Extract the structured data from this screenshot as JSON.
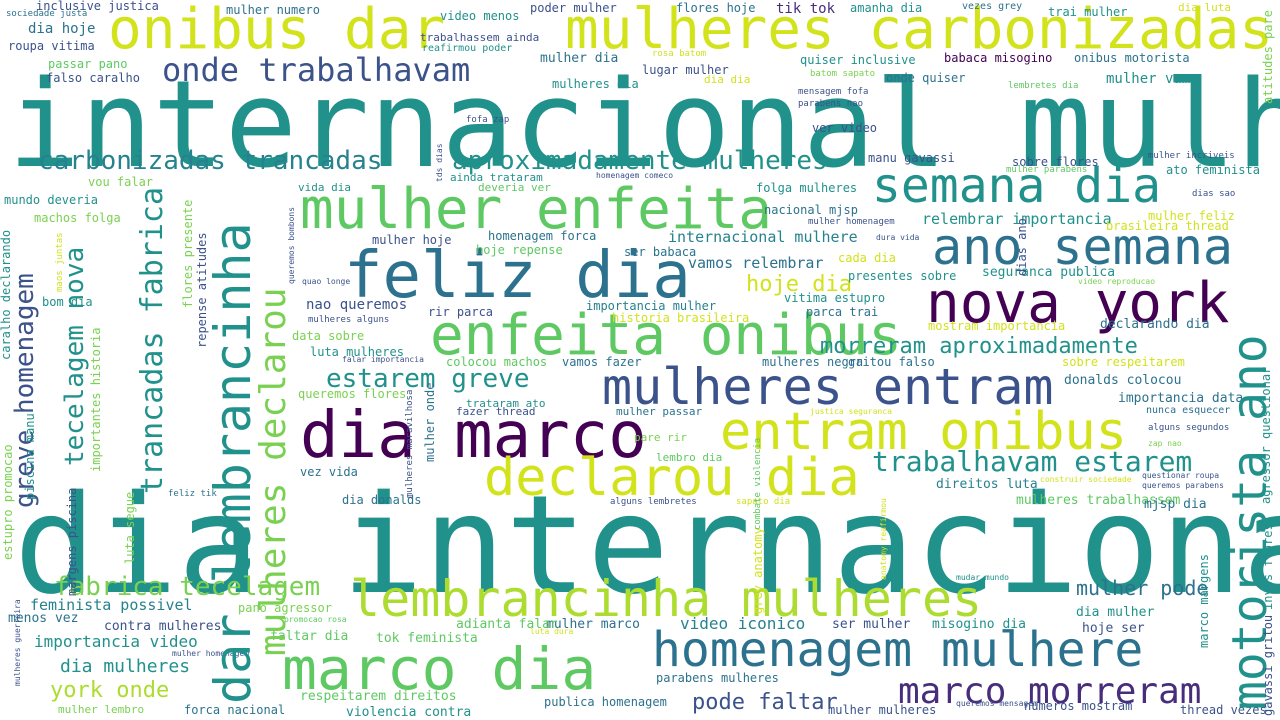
{
  "palette": {
    "teal": "#21918c",
    "navy": "#3b528b",
    "purple": "#440154",
    "green": "#5ec962",
    "lime": "#addc30",
    "yellow": "#d2e21b",
    "blue": "#2c728e",
    "lightgreen": "#7ad151",
    "darkteal": "#26828e",
    "indigo": "#472d7b"
  },
  "words": [
    "dia internacional",
    "internacional mulher",
    "mulheres carbonizadas",
    "onibus dar",
    "onde trabalhavam",
    "motorista ano",
    "semana dia",
    "ano semana",
    "mulher enfeita",
    "dar lembrancinha",
    "feliz dia",
    "nova york",
    "enfeita onibus",
    "mulheres declarou",
    "mulheres entram",
    "dia marco",
    "entram onibus",
    "declarou dia",
    "marco dia",
    "lembrancinha mulheres",
    "homenagem mulhere",
    "marco morreram",
    "carbonizadas trancadas",
    "aproximadamente mulheres",
    "trancadas fabrica",
    "tecelagem nova",
    "greve homenagem",
    "fabrica tecelagem",
    "estarem greve",
    "trabalhavam estarem",
    "morreram aproximadamente",
    "york onde",
    "pode faltar",
    "hoje dia",
    "mulher pode",
    "dia mulheres",
    "importancia video",
    "feminista possivel",
    "video iconico",
    "homenagem forca",
    "internacional mulhere",
    "vamos relembrar",
    "relembrar importancia",
    "seguranca publica",
    "declarando dia",
    "importancia data",
    "donalds colocou",
    "mulheres trabalhassem",
    "direitos luta",
    "mjsp dia",
    "dia mulher",
    "hoje ser",
    "misogino dia",
    "ser mulher",
    "mulher marco",
    "adianta falar",
    "tok feminista",
    "faltar dia",
    "contra mulheres",
    "menos vez",
    "pano agressor",
    "respeitarem direitos",
    "violencia contra",
    "publica homenagem",
    "parabens mulheres",
    "mulher mulheres",
    "numeros mostram",
    "thread vezes",
    "forca nacional",
    "mulher lembro",
    "lembro dia",
    "pare rir",
    "mulher passar",
    "fazer thread",
    "trataram ato",
    "vez vida",
    "dia donalds",
    "nunca esquecer",
    "alguns segundos",
    "agressor questionar",
    "inves flores",
    "gavassi gritou",
    "marco margens",
    "grey anatomy",
    "combate violencia",
    "mulheres maravilhosa",
    "mulher onde",
    "colocou machos",
    "vamos fazer",
    "mulheres negra",
    "gritou falso",
    "sobre respeitarem",
    "mostram importancia",
    "historia brasileira",
    "parca trai",
    "vitima estupro",
    "importancia mulher",
    "rir parca",
    "nao queremos",
    "mulheres alguns",
    "data sobre",
    "luta mulheres",
    "queremos flores",
    "presentes sobre",
    "cada dia",
    "ser babaca",
    "hoje repense",
    "mulher hoje",
    "nacional mjsp",
    "mulher homenagem",
    "folga mulheres",
    "mulher feliz",
    "brasileira thread",
    "ato feminista",
    "dias sao",
    "sobre flores",
    "manu gavassi",
    "ver video",
    "mulher incriveis",
    "dias ano",
    "lembretes dia",
    "mulher parabens",
    "atitudes pare",
    "dia luta",
    "trai mulher",
    "vezes grey",
    "amanha dia",
    "tik tok",
    "flores hoje",
    "poder mulher",
    "video menos",
    "mulher numero",
    "sociedade justa",
    "inclusive justica",
    "dia hoje",
    "roupa vitima",
    "passar pano",
    "falso caralho",
    "trabalhassem ainda",
    "reafirmou poder",
    "rosa batom",
    "mulher dia",
    "mulheres dia",
    "lugar mulher",
    "dia dia",
    "quiser inclusive",
    "babaca misogino",
    "onibus motorista",
    "mulher vamo",
    "onde quiser",
    "batom sapato",
    "mensagem fofa",
    "parabens nao",
    "fofa zap",
    "homenagem comeco",
    "deveria ver",
    "vida dia",
    "ainda trataram",
    "vou falar",
    "mundo deveria",
    "machos folga",
    "maos juntas",
    "bom dia",
    "quao longe",
    "queremos bombons",
    "flores presente",
    "repense atitudes",
    "dura vida",
    "video reproducao",
    "negras importantes",
    "caralho declarando",
    "estupro promocao",
    "piscina manu",
    "margens piscina",
    "importantes historia",
    "luta segue",
    "falar importancia",
    "feliz tik",
    "justica seguranca",
    "questionar roupa",
    "queremos parabens",
    "construir sociedade",
    "zap nao",
    "bombons nao",
    "luta dura",
    "promocao rosa",
    "mudar mundo",
    "mulher homenagem",
    "queremos mensagem",
    "mulheres guerreira",
    "anatomy reafirmou",
    "flores nao",
    "tds dias",
    "mulher lembrete",
    "sapato dia",
    "alguns lembretes",
    "mulheres tds",
    "incriveis dia",
    "mulher motorista",
    "atitudes pare"
  ]
}
